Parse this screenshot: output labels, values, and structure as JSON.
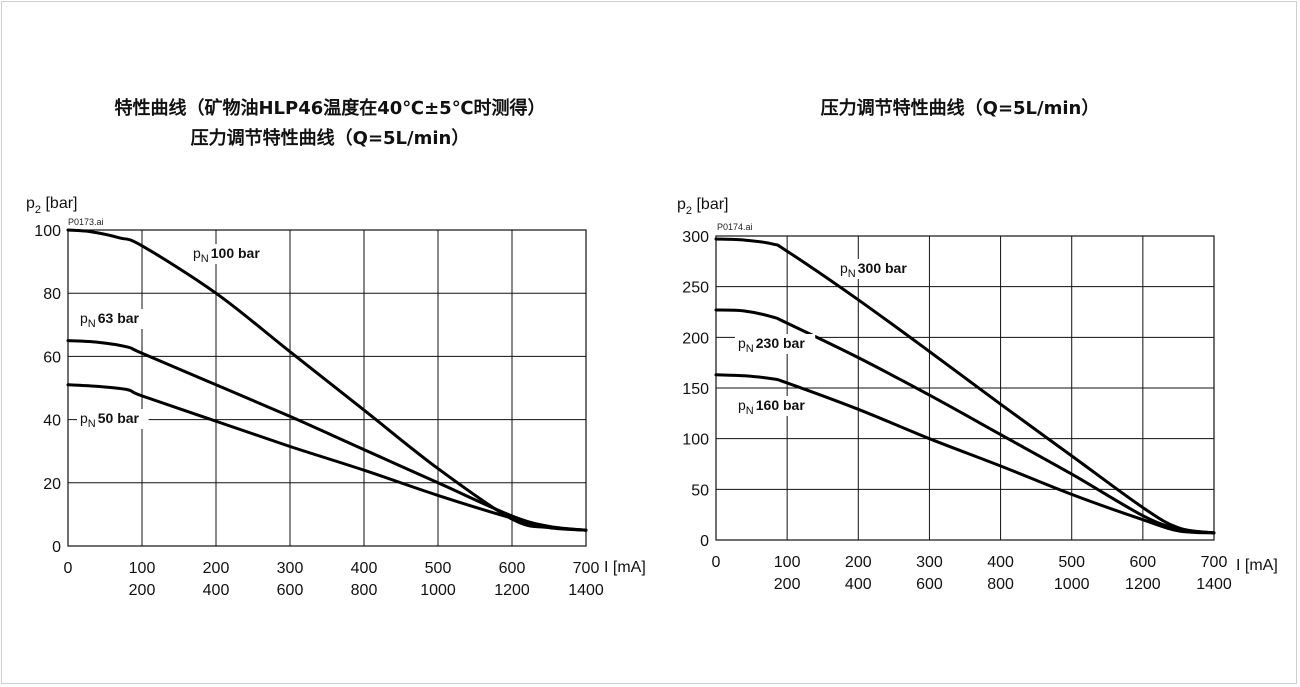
{
  "chart_data": [
    {
      "type": "line",
      "title": "特性曲线（矿物油HLP46温度在40℃±5℃时测得）",
      "subtitle": "压力调节特性曲线（Q=5L/min）",
      "file_label": "P0173.ai",
      "ylabel_main": "p",
      "ylabel_sub": "2",
      "ylabel_unit": "[bar]",
      "xlabel": "I [mA]",
      "xlim": [
        0,
        700
      ],
      "ylim": [
        0,
        100
      ],
      "x_ticks": [
        "0",
        "100",
        "200",
        "300",
        "400",
        "500",
        "600",
        "700"
      ],
      "x_ticks_secondary": [
        "200",
        "400",
        "600",
        "800",
        "1000",
        "1200",
        "1400"
      ],
      "y_ticks": [
        "0",
        "20",
        "40",
        "60",
        "80",
        "100"
      ],
      "grid": true,
      "series": [
        {
          "label_main": "p",
          "label_sub": "N",
          "label_value": "100 bar",
          "x": [
            0,
            30,
            70,
            100,
            200,
            300,
            400,
            500,
            600,
            650,
            700
          ],
          "y": [
            100,
            99.5,
            97.5,
            95,
            80,
            61.5,
            43,
            24.5,
            8.5,
            5.8,
            5
          ]
        },
        {
          "label_main": "p",
          "label_sub": "N",
          "label_value": "63 bar",
          "x": [
            0,
            40,
            80,
            100,
            200,
            300,
            400,
            500,
            600,
            650,
            700
          ],
          "y": [
            65,
            64.5,
            63,
            61,
            51,
            41,
            30.5,
            20,
            9.5,
            6.2,
            5
          ]
        },
        {
          "label_main": "p",
          "label_sub": "N",
          "label_value": "50 bar",
          "x": [
            0,
            40,
            80,
            100,
            200,
            300,
            400,
            500,
            600,
            650,
            700
          ],
          "y": [
            51,
            50.5,
            49.5,
            47.5,
            39.5,
            31.5,
            24,
            16,
            8.8,
            6,
            5
          ]
        }
      ]
    },
    {
      "type": "line",
      "title": "压力调节特性曲线（Q=5L/min）",
      "file_label": "P0174.ai",
      "ylabel_main": "p",
      "ylabel_sub": "2",
      "ylabel_unit": "[bar]",
      "xlabel": "I [mA]",
      "xlim": [
        0,
        700
      ],
      "ylim": [
        0,
        300
      ],
      "x_ticks": [
        "0",
        "100",
        "200",
        "300",
        "400",
        "500",
        "600",
        "700"
      ],
      "x_ticks_secondary": [
        "200",
        "400",
        "600",
        "800",
        "1000",
        "1200",
        "1400"
      ],
      "y_ticks": [
        "0",
        "50",
        "100",
        "150",
        "200",
        "250",
        "300"
      ],
      "grid": true,
      "series": [
        {
          "label_main": "p",
          "label_sub": "N",
          "label_value": "300 bar",
          "x": [
            0,
            40,
            80,
            100,
            200,
            300,
            400,
            500,
            600,
            650,
            700
          ],
          "y": [
            297,
            296,
            292,
            285,
            237,
            186,
            134,
            83,
            32,
            12,
            7
          ]
        },
        {
          "label_main": "p",
          "label_sub": "N",
          "label_value": "230 bar",
          "x": [
            0,
            40,
            80,
            100,
            200,
            300,
            400,
            500,
            600,
            650,
            700
          ],
          "y": [
            227,
            226,
            220,
            214,
            180,
            143,
            104,
            65,
            24,
            11,
            7
          ]
        },
        {
          "label_main": "p",
          "label_sub": "N",
          "label_value": "160 bar",
          "x": [
            0,
            40,
            80,
            100,
            200,
            300,
            400,
            500,
            600,
            650,
            700
          ],
          "y": [
            163,
            162,
            159,
            155,
            129,
            100,
            73,
            45,
            20,
            9,
            7
          ]
        }
      ]
    }
  ]
}
